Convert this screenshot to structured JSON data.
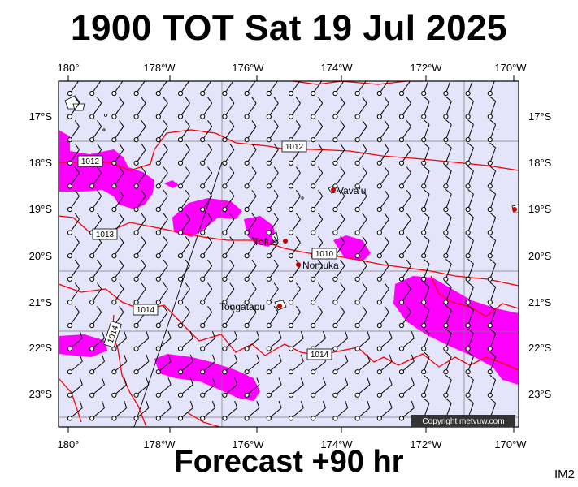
{
  "title": "1900 TOT Sat 19 Jul 2025",
  "footer": "Forecast +90 hr",
  "corner_label": "IM2",
  "copyright": "Copyright metvuw.com",
  "lon_labels": [
    "180°",
    "178°W",
    "176°W",
    "174°W",
    "172°W",
    "170°W"
  ],
  "lat_labels": [
    "17°S",
    "18°S",
    "19°S",
    "20°S",
    "21°S",
    "22°S",
    "23°S"
  ],
  "isobar_labels": [
    "1012",
    "1012",
    "1013",
    "1010",
    "1014",
    "1014",
    "1014"
  ],
  "places": [
    "Vava'u",
    "Tofua",
    "Nomuka",
    "Tongatapu"
  ],
  "colors": {
    "ocean": "#e4e4fb",
    "rain": "#ff00ff",
    "isobar": "#ff0000",
    "land": "#ffffff",
    "place_dot": "#cc0000"
  }
}
